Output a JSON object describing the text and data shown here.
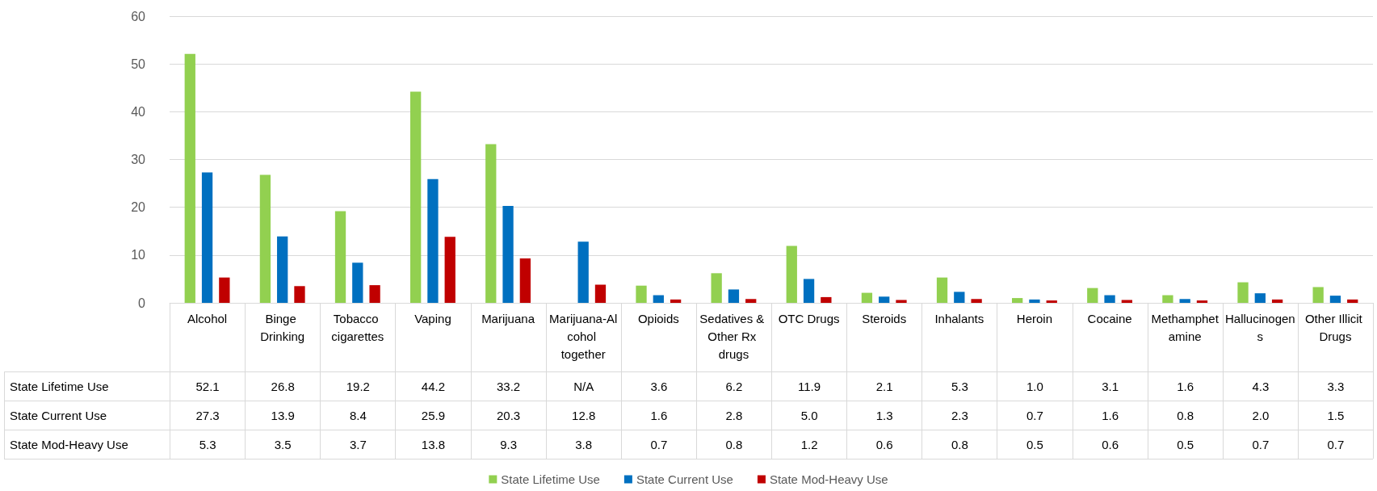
{
  "chart_data": {
    "type": "bar",
    "categories": [
      "Alcohol",
      "Binge Drinking",
      "Tobacco cigarettes",
      "Vaping",
      "Marijuana",
      "Marijuana-Alcohol together",
      "Opioids",
      "Sedatives & Other Rx drugs",
      "OTC Drugs",
      "Steroids",
      "Inhalants",
      "Heroin",
      "Cocaine",
      "Methamphetamine",
      "Hallucinogens",
      "Other Illicit Drugs"
    ],
    "series": [
      {
        "name": "State Lifetime Use",
        "color": "#92d050",
        "values": [
          52.1,
          26.8,
          19.2,
          44.2,
          33.2,
          null,
          3.6,
          6.2,
          11.9,
          2.1,
          5.3,
          1.0,
          3.1,
          1.6,
          4.3,
          3.3
        ],
        "value_labels": [
          "52.1",
          "26.8",
          "19.2",
          "44.2",
          "33.2",
          "N/A",
          "3.6",
          "6.2",
          "11.9",
          "2.1",
          "5.3",
          "1.0",
          "3.1",
          "1.6",
          "4.3",
          "3.3"
        ]
      },
      {
        "name": "State Current Use",
        "color": "#0070c0",
        "values": [
          27.3,
          13.9,
          8.4,
          25.9,
          20.3,
          12.8,
          1.6,
          2.8,
          5.0,
          1.3,
          2.3,
          0.7,
          1.6,
          0.8,
          2.0,
          1.5
        ],
        "value_labels": [
          "27.3",
          "13.9",
          "8.4",
          "25.9",
          "20.3",
          "12.8",
          "1.6",
          "2.8",
          "5.0",
          "1.3",
          "2.3",
          "0.7",
          "1.6",
          "0.8",
          "2.0",
          "1.5"
        ]
      },
      {
        "name": "State Mod-Heavy Use",
        "color": "#c00000",
        "values": [
          5.3,
          3.5,
          3.7,
          13.8,
          9.3,
          3.8,
          0.7,
          0.8,
          1.2,
          0.6,
          0.8,
          0.5,
          0.6,
          0.5,
          0.7,
          0.7
        ],
        "value_labels": [
          "5.3",
          "3.5",
          "3.7",
          "13.8",
          "9.3",
          "3.8",
          "0.7",
          "0.8",
          "1.2",
          "0.6",
          "0.8",
          "0.5",
          "0.6",
          "0.5",
          "0.7",
          "0.7"
        ]
      }
    ],
    "ylim": [
      0,
      60
    ],
    "yticks": [
      0,
      10,
      20,
      30,
      40,
      50,
      60
    ],
    "grid": "y",
    "legend": "bottom"
  }
}
